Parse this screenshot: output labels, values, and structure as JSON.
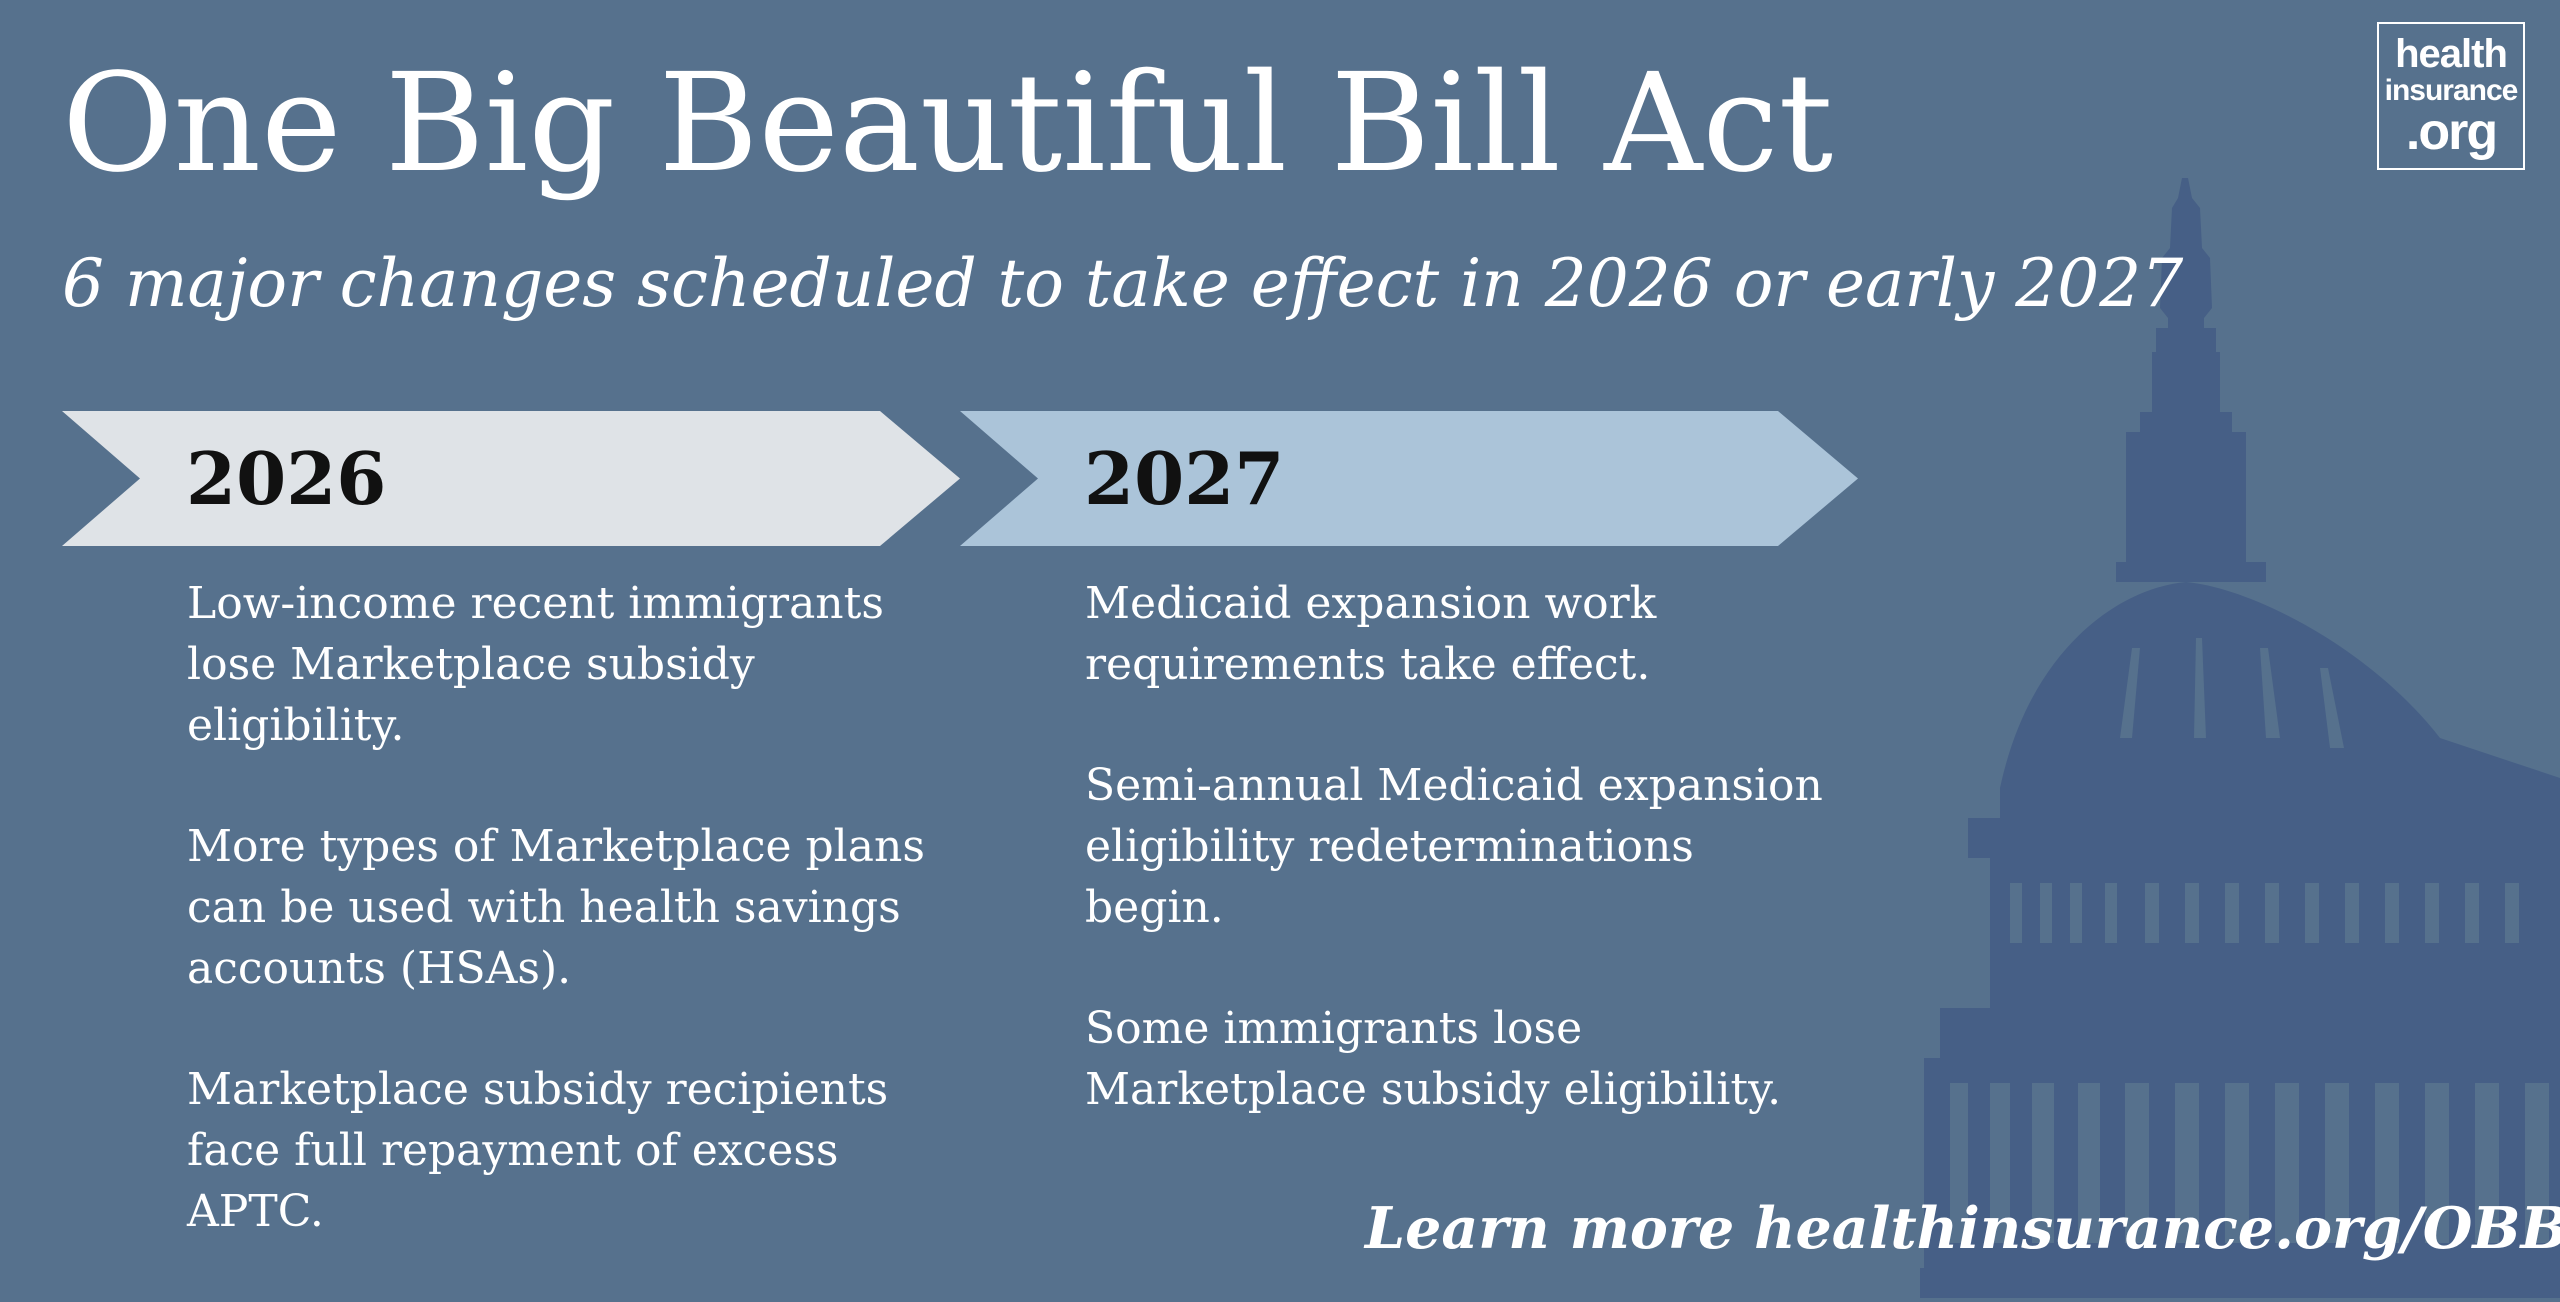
{
  "logo": {
    "line1": "health",
    "line2": "insurance",
    "line3": ".org"
  },
  "title": "One Big Beautiful Bill Act",
  "subtitle": "6 major changes scheduled to take effect in 2026 or early 2027",
  "colors": {
    "background": "#56718d",
    "arrow_2026": "#dfe3e7",
    "arrow_2027": "#abc4d9",
    "capitol": "#465f86"
  },
  "columns": [
    {
      "year": "2026",
      "items": [
        "Low-income recent immigrants lose Marketplace subsidy eligibility.",
        "More types of Marketplace plans can be used with health savings accounts (HSAs).",
        "Marketplace subsidy recipients face full repayment of excess APTC."
      ]
    },
    {
      "year": "2027",
      "items": [
        "Medicaid expansion work requirements take effect.",
        "Semi-annual Medicaid expansion eligibility redeterminations begin.",
        "Some immigrants lose Marketplace subsidy eligibility."
      ]
    }
  ],
  "footer": {
    "learn_more": "Learn more healthinsurance.org/OBBBA"
  },
  "icons": {
    "background": "capitol-dome-icon"
  }
}
